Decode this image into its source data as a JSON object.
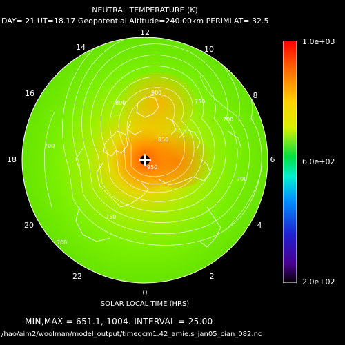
{
  "title": "NEUTRAL TEMPERATURE (K)",
  "subtitle": "DAY= 21 UT=18.17 Geopotential Altitude=240.00km PERIMLAT= 32.5",
  "x_axis_label": "SOLAR LOCAL TIME (HRS)",
  "minmax_text": "MIN,MAX =        651.1,        1004. INTERVAL =        25.00",
  "file_path": "/hao/aim2/woolman/model_output/timegcm1.42_amie.s_jan05_cian_082.nc",
  "local_times": [
    "12",
    "10",
    "8",
    "6",
    "4",
    "2",
    "0",
    "22",
    "20",
    "18",
    "16",
    "14"
  ],
  "colorbar": {
    "max_label": "1.0e+03",
    "mid_label": "6.0e+02",
    "min_label": "2.0e+02",
    "min": 200,
    "max": 1000
  },
  "contour_labels": [
    "900",
    "850",
    "800",
    "750",
    "700",
    "700",
    "750",
    "700",
    "700",
    "950"
  ],
  "colors": {
    "background": "#000000",
    "field_green": "#7cf000",
    "hot_core": "#ff5a00",
    "text": "#ffffff"
  }
}
